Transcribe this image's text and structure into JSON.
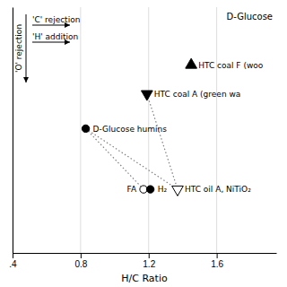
{
  "chart_data": {
    "type": "scatter",
    "xlabel": "H/C Ratio",
    "xlim": [
      0.4,
      1.95
    ],
    "ylim": [
      0.85,
      0.0
    ],
    "xticks": [
      {
        "value": 0.4,
        "label": ".4"
      },
      0.8,
      1.2,
      1.6
    ],
    "grid": true,
    "tick_labels": "x",
    "series": [
      {
        "type": "line",
        "line_style": "dotted",
        "color": "gray",
        "x": [
          0.83,
          1.17
        ],
        "values": [
          0.42,
          0.63
        ]
      },
      {
        "type": "line",
        "line_style": "dotted",
        "color": "gray",
        "x": [
          0.83,
          1.37
        ],
        "values": [
          0.42,
          0.63
        ]
      },
      {
        "type": "line",
        "line_style": "dotted",
        "color": "gray",
        "x": [
          1.19,
          1.37
        ],
        "values": [
          0.3,
          0.63
        ]
      },
      {
        "type": "scatter",
        "marker": "circle",
        "color": "black",
        "x": [
          0.83
        ],
        "values": [
          0.42
        ],
        "labels": [
          "D-Glucose humins"
        ]
      },
      {
        "type": "scatter",
        "marker": "triangle-down",
        "color": "black",
        "x": [
          1.19
        ],
        "values": [
          0.3
        ],
        "labels": [
          "HTC coal A (green wa"
        ]
      },
      {
        "type": "scatter",
        "marker": "triangle-up",
        "color": "black",
        "x": [
          1.45
        ],
        "values": [
          0.2
        ],
        "labels": [
          "HTC coal F (woo"
        ]
      },
      {
        "type": "scatter",
        "marker": "circle",
        "color": "white",
        "x": [
          1.17
        ],
        "values": [
          0.63
        ],
        "labels": [
          "FA"
        ]
      },
      {
        "type": "scatter",
        "marker": "circle",
        "color": "black",
        "x": [
          1.21
        ],
        "values": [
          0.63
        ],
        "labels": [
          "H₂"
        ]
      },
      {
        "type": "scatter",
        "marker": "triangle-down",
        "color": "white",
        "x": [
          1.37
        ],
        "values": [
          0.63
        ],
        "labels": [
          "HTC oil A, NiTiO₂"
        ]
      }
    ],
    "annotations": [
      {
        "text": "D-Glucose"
      },
      {
        "text": "'C' rejection",
        "arrow": "right"
      },
      {
        "text": "'H' addition",
        "arrow": "right"
      },
      {
        "text": "'O' rejection",
        "arrow": "down"
      }
    ]
  }
}
